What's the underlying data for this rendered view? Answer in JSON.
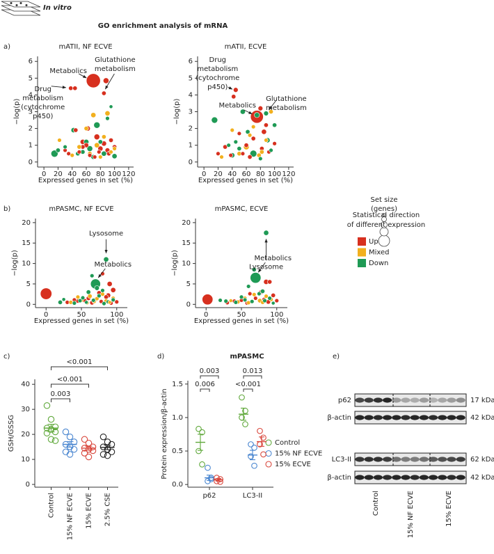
{
  "header": {
    "label": "In vitro",
    "title": "GO enrichment analysis of mRNA"
  },
  "panel_labels": [
    "a)",
    "b)",
    "c)",
    "d)",
    "e)"
  ],
  "size_legend": {
    "title": [
      "Set size",
      "(genes)"
    ]
  },
  "color_legend": {
    "title": [
      "Statistical direction",
      "of different expression"
    ],
    "items": [
      {
        "name": "Up",
        "color": "#d7301f"
      },
      {
        "name": "Mixed",
        "color": "#f2b01e"
      },
      {
        "name": "Down",
        "color": "#1f9a55"
      }
    ]
  },
  "chart_data": [
    {
      "type": "scatter",
      "title": "mATII, NF ECVE",
      "x_label": "Expressed genes in set (%)",
      "y_label": "−log(p)",
      "xlim": [
        -9,
        127
      ],
      "ylim": [
        -0.3,
        6.3
      ],
      "xticks": [
        0,
        20,
        40,
        60,
        80,
        100,
        120
      ],
      "yticks": [
        0,
        1,
        2,
        3,
        4,
        5,
        6
      ],
      "series": [
        {
          "color": "#d7301f",
          "x": [
            70,
            88,
            85,
            38,
            44,
            30,
            55,
            75,
            80,
            92,
            60,
            65,
            45,
            50,
            85,
            100,
            35,
            72,
            95,
            62,
            78,
            55,
            90
          ],
          "y": [
            4.85,
            4.85,
            4.1,
            4.4,
            4.4,
            0.7,
            1.2,
            1.5,
            0.8,
            0.5,
            1.0,
            0.4,
            1.9,
            0.6,
            1.1,
            0.9,
            0.5,
            0.3,
            1.3,
            2.0,
            0.6,
            0.9,
            0.7
          ],
          "size": [
            60,
            10,
            6,
            6,
            6,
            5,
            8,
            10,
            8,
            6,
            7,
            5,
            6,
            5,
            8,
            6,
            5,
            5,
            6,
            8,
            5,
            6,
            7
          ]
        },
        {
          "color": "#f2b01e",
          "x": [
            70,
            90,
            60,
            85,
            22,
            50,
            75,
            95,
            40,
            65,
            80,
            100
          ],
          "y": [
            2.8,
            2.9,
            2.0,
            1.5,
            1.3,
            0.9,
            1.0,
            0.6,
            0.4,
            0.5,
            0.3,
            0.8
          ],
          "size": [
            8,
            8,
            6,
            6,
            5,
            6,
            8,
            5,
            5,
            6,
            5,
            5
          ]
        },
        {
          "color": "#1f9a55",
          "x": [
            15,
            75,
            42,
            60,
            90,
            20,
            85,
            55,
            70,
            30,
            95,
            48,
            65,
            80,
            100
          ],
          "y": [
            0.5,
            2.2,
            1.9,
            1.2,
            2.6,
            0.7,
            0.5,
            0.6,
            0.3,
            0.9,
            3.3,
            0.5,
            0.8,
            1.2,
            0.35
          ],
          "size": [
            15,
            12,
            8,
            8,
            5,
            6,
            8,
            6,
            7,
            5,
            4,
            6,
            10,
            6,
            8
          ]
        }
      ],
      "annotations": [
        {
          "lines": [
            "Metabolics"
          ],
          "x": 70,
          "y": 4.85
        },
        {
          "lines": [
            "Glutathione",
            "metabolism"
          ],
          "x": 85,
          "y": 4.1
        },
        {
          "lines": [
            "Drug",
            "metabolism",
            "(cytochrome",
            "p450)"
          ],
          "x": 38,
          "y": 4.4
        }
      ]
    },
    {
      "type": "scatter",
      "title": "mATII, ECVE",
      "x_label": "Expressed genes in set (%)",
      "y_label": "−log(p)",
      "xlim": [
        -9,
        127
      ],
      "ylim": [
        -0.3,
        6.3
      ],
      "xticks": [
        0,
        20,
        40,
        60,
        80,
        100,
        120
      ],
      "yticks": [
        0,
        1,
        2,
        3,
        4,
        5,
        6
      ],
      "series": [
        {
          "color": "#d7301f",
          "x": [
            75,
            45,
            42,
            80,
            85,
            88,
            60,
            30,
            55,
            70,
            92,
            100,
            38,
            65,
            50,
            82,
            20
          ],
          "y": [
            2.7,
            4.3,
            3.9,
            3.2,
            1.8,
            2.2,
            1.0,
            0.9,
            0.5,
            1.4,
            0.6,
            1.1,
            0.4,
            0.3,
            1.7,
            0.8,
            0.5
          ],
          "size": [
            50,
            7,
            6,
            7,
            8,
            6,
            6,
            6,
            5,
            6,
            5,
            5,
            5,
            6,
            5,
            6,
            5
          ]
        },
        {
          "color": "#f2b01e",
          "x": [
            95,
            60,
            82,
            40,
            70,
            50,
            88,
            25,
            65,
            78
          ],
          "y": [
            3.0,
            0.9,
            0.6,
            1.9,
            2.1,
            0.5,
            1.3,
            0.3,
            1.6,
            0.4
          ],
          "size": [
            6,
            10,
            6,
            5,
            5,
            6,
            5,
            5,
            5,
            6
          ]
        },
        {
          "color": "#1f9a55",
          "x": [
            15,
            55,
            75,
            100,
            70,
            40,
            90,
            88,
            62,
            35,
            50,
            80,
            45,
            95
          ],
          "y": [
            2.5,
            3.0,
            2.8,
            2.2,
            0.5,
            0.4,
            1.3,
            2.9,
            1.8,
            1.0,
            0.8,
            0.2,
            1.2,
            0.7
          ],
          "size": [
            12,
            8,
            8,
            6,
            14,
            8,
            8,
            7,
            6,
            5,
            6,
            5,
            5,
            5
          ]
        }
      ],
      "annotations": [
        {
          "lines": [
            "Drug",
            "metabolism",
            "(cytochrome",
            "p450)"
          ],
          "x": 45,
          "y": 4.3
        },
        {
          "lines": [
            "Metabolics"
          ],
          "x": 75,
          "y": 2.7
        },
        {
          "lines": [
            "Glutathione",
            "metabolism"
          ],
          "x": 88,
          "y": 2.9
        }
      ]
    },
    {
      "type": "scatter",
      "title": "mPASMC, NF ECVE",
      "x_label": "Expressed genes in set (%)",
      "y_label": "−log(p)",
      "xlim": [
        -15,
        115
      ],
      "ylim": [
        -0.8,
        21
      ],
      "xticks": [
        0,
        50,
        100
      ],
      "yticks": [
        0,
        5,
        10,
        15,
        20
      ],
      "series": [
        {
          "color": "#d7301f",
          "x": [
            0,
            90,
            95,
            80,
            88,
            60,
            75,
            45,
            30,
            70,
            85,
            100,
            55,
            65,
            40,
            92,
            78
          ],
          "y": [
            2.6,
            5,
            3.5,
            7.5,
            2.2,
            1.5,
            2.8,
            0.8,
            0.5,
            1.2,
            1.8,
            0.6,
            0.9,
            0.4,
            1.1,
            0.3,
            0.7
          ],
          "size": [
            40,
            8,
            8,
            5,
            7,
            6,
            6,
            5,
            5,
            5,
            6,
            5,
            5,
            6,
            5,
            5,
            5
          ]
        },
        {
          "color": "#f2b01e",
          "x": [
            50,
            62,
            72,
            85,
            95,
            35,
            58,
            80,
            68,
            90,
            45
          ],
          "y": [
            1.0,
            2.0,
            1.4,
            0.8,
            1.5,
            0.5,
            0.4,
            2.5,
            0.7,
            0.5,
            1.8
          ],
          "size": [
            5,
            6,
            5,
            6,
            5,
            5,
            5,
            5,
            5,
            4,
            5
          ]
        },
        {
          "color": "#1f9a55",
          "x": [
            85,
            70,
            65,
            72,
            20,
            52,
            60,
            80,
            88,
            48,
            75,
            95,
            40,
            57,
            67,
            82,
            25
          ],
          "y": [
            11,
            5,
            7,
            4,
            0.5,
            1.6,
            3,
            3.4,
            0.6,
            0.9,
            2.1,
            1.1,
            0.3,
            0.5,
            1.0,
            0.2,
            1.2
          ],
          "size": [
            8,
            30,
            5,
            7,
            6,
            5,
            6,
            5,
            5,
            5,
            5,
            5,
            5,
            4,
            5,
            5,
            4
          ]
        }
      ],
      "annotations": [
        {
          "lines": [
            "Lysosome"
          ],
          "x": 85,
          "y": 11
        },
        {
          "lines": [
            "Metabolics"
          ],
          "x": 70,
          "y": 5
        }
      ]
    },
    {
      "type": "scatter",
      "title": "mPASMC, ECVE",
      "x_label": "Expressed genes in set (%)",
      "y_label": "−log(p)",
      "xlim": [
        -15,
        115
      ],
      "ylim": [
        -0.8,
        21
      ],
      "xticks": [
        0,
        50,
        100
      ],
      "yticks": [
        0,
        5,
        10,
        15,
        20
      ],
      "series": [
        {
          "color": "#d7301f",
          "x": [
            2,
            85,
            90,
            78,
            62,
            95,
            50,
            70,
            88,
            40,
            30,
            58,
            82,
            100
          ],
          "y": [
            1.2,
            5.5,
            5.5,
            3,
            2.6,
            2.2,
            1.0,
            1.5,
            0.6,
            0.8,
            0.4,
            0.3,
            1.2,
            0.9
          ],
          "size": [
            35,
            8,
            6,
            6,
            5,
            6,
            5,
            5,
            6,
            5,
            5,
            5,
            5,
            5
          ]
        },
        {
          "color": "#f2b01e",
          "x": [
            55,
            68,
            76,
            85,
            45,
            92,
            60,
            80,
            35
          ],
          "y": [
            1.5,
            2.4,
            0.9,
            2.0,
            0.6,
            1.2,
            0.4,
            0.5,
            0.9
          ],
          "size": [
            5,
            5,
            6,
            5,
            5,
            5,
            5,
            5,
            4
          ]
        },
        {
          "color": "#1f9a55",
          "x": [
            85,
            70,
            68,
            60,
            80,
            20,
            50,
            75,
            90,
            42,
            65,
            95,
            28,
            55,
            83
          ],
          "y": [
            17.5,
            6.5,
            8.5,
            4.4,
            3.2,
            1.0,
            1.8,
            2.6,
            1.5,
            0.5,
            0.7,
            0.3,
            0.8,
            1.1,
            0.9
          ],
          "size": [
            8,
            35,
            6,
            5,
            6,
            5,
            5,
            5,
            5,
            5,
            5,
            4,
            5,
            5,
            5
          ]
        }
      ],
      "annotations": [
        {
          "lines": [
            "Lysosome"
          ],
          "x": 85,
          "y": 17.5
        },
        {
          "lines": [
            "Metabolics"
          ],
          "x": 70,
          "y": 6.5
        }
      ]
    },
    {
      "type": "strip",
      "y_label": "GSH/GSSG",
      "ylim": [
        -1.1,
        42
      ],
      "yticks": [
        0,
        10,
        20,
        30,
        40
      ],
      "categories": [
        "Control",
        "15% NF ECVE",
        "15% ECVE",
        "2.5% CSE"
      ],
      "colors": [
        "#5fa83a",
        "#4a86d0",
        "#d8453a",
        "#222222"
      ],
      "values": [
        [
          31.5,
          26,
          23,
          22.5,
          22,
          21,
          20.5,
          18,
          17.5
        ],
        [
          21,
          19,
          17,
          16,
          15,
          14,
          13,
          12
        ],
        [
          18,
          16.5,
          15,
          14.5,
          14,
          13.5,
          12.5,
          11
        ],
        [
          19,
          17,
          16,
          15,
          14,
          13,
          12,
          11.5
        ]
      ],
      "means": [
        22.5,
        16,
        14.5,
        14.8
      ],
      "sems": [
        1.5,
        1.1,
        0.8,
        0.9
      ],
      "brackets": [
        {
          "label": "<0.001",
          "pair": [
            0,
            3
          ]
        },
        {
          "label": "<0.001",
          "pair": [
            0,
            2
          ]
        },
        {
          "label": "0.003",
          "pair": [
            0,
            1
          ]
        }
      ]
    },
    {
      "type": "grouped_strip",
      "title": "mPASMC",
      "y_label": "Protein expression/β-actin",
      "ylim": [
        -0.04,
        1.55
      ],
      "yticks": [
        {
          "value": 0,
          "label": "0.0"
        },
        0.5,
        {
          "value": 1,
          "label": "1.0"
        },
        1.5
      ],
      "categories": [
        "p62",
        "LC3-II"
      ],
      "series": [
        {
          "name": "Control",
          "color": "#5fa83a",
          "values": [
            [
              0.83,
              0.78,
              0.5,
              0.3
            ],
            [
              1.3,
              1.1,
              1.0,
              0.9
            ]
          ],
          "means": [
            0.63,
            1.05
          ],
          "sems": [
            0.12,
            0.09
          ]
        },
        {
          "name": "15% NF ECVE",
          "color": "#4a86d0",
          "values": [
            [
              0.25,
              0.08,
              0.05,
              0.1
            ],
            [
              0.6,
              0.55,
              0.42,
              0.28
            ]
          ],
          "means": [
            0.1,
            0.44
          ],
          "sems": [
            0.04,
            0.07
          ]
        },
        {
          "name": "15% ECVE",
          "color": "#d8453a",
          "values": [
            [
              0.1,
              0.08,
              0.05,
              0.04
            ],
            [
              0.8,
              0.7,
              0.6,
              0.45
            ]
          ],
          "means": [
            0.07,
            0.64
          ],
          "sems": [
            0.02,
            0.07
          ]
        }
      ],
      "brackets": [
        {
          "label": "0.003",
          "category": 0,
          "pair": [
            0,
            2
          ]
        },
        {
          "label": "0.006",
          "category": 0,
          "pair": [
            0,
            1
          ]
        },
        {
          "label": "0.013",
          "category": 1,
          "pair": [
            0,
            2
          ]
        },
        {
          "label": "<0.001",
          "category": 1,
          "pair": [
            0,
            1
          ]
        }
      ]
    }
  ],
  "blot": {
    "rows": [
      {
        "label": "p62",
        "size": "17 kDa"
      },
      {
        "label": "β-actin",
        "size": "42 kDa"
      },
      {
        "label": "LC3-II",
        "size": "62 kDa"
      },
      {
        "label": "β-actin",
        "size": "42 kDa"
      }
    ],
    "groups": [
      "Control",
      "15% NF ECVE",
      "15% ECVE"
    ]
  }
}
